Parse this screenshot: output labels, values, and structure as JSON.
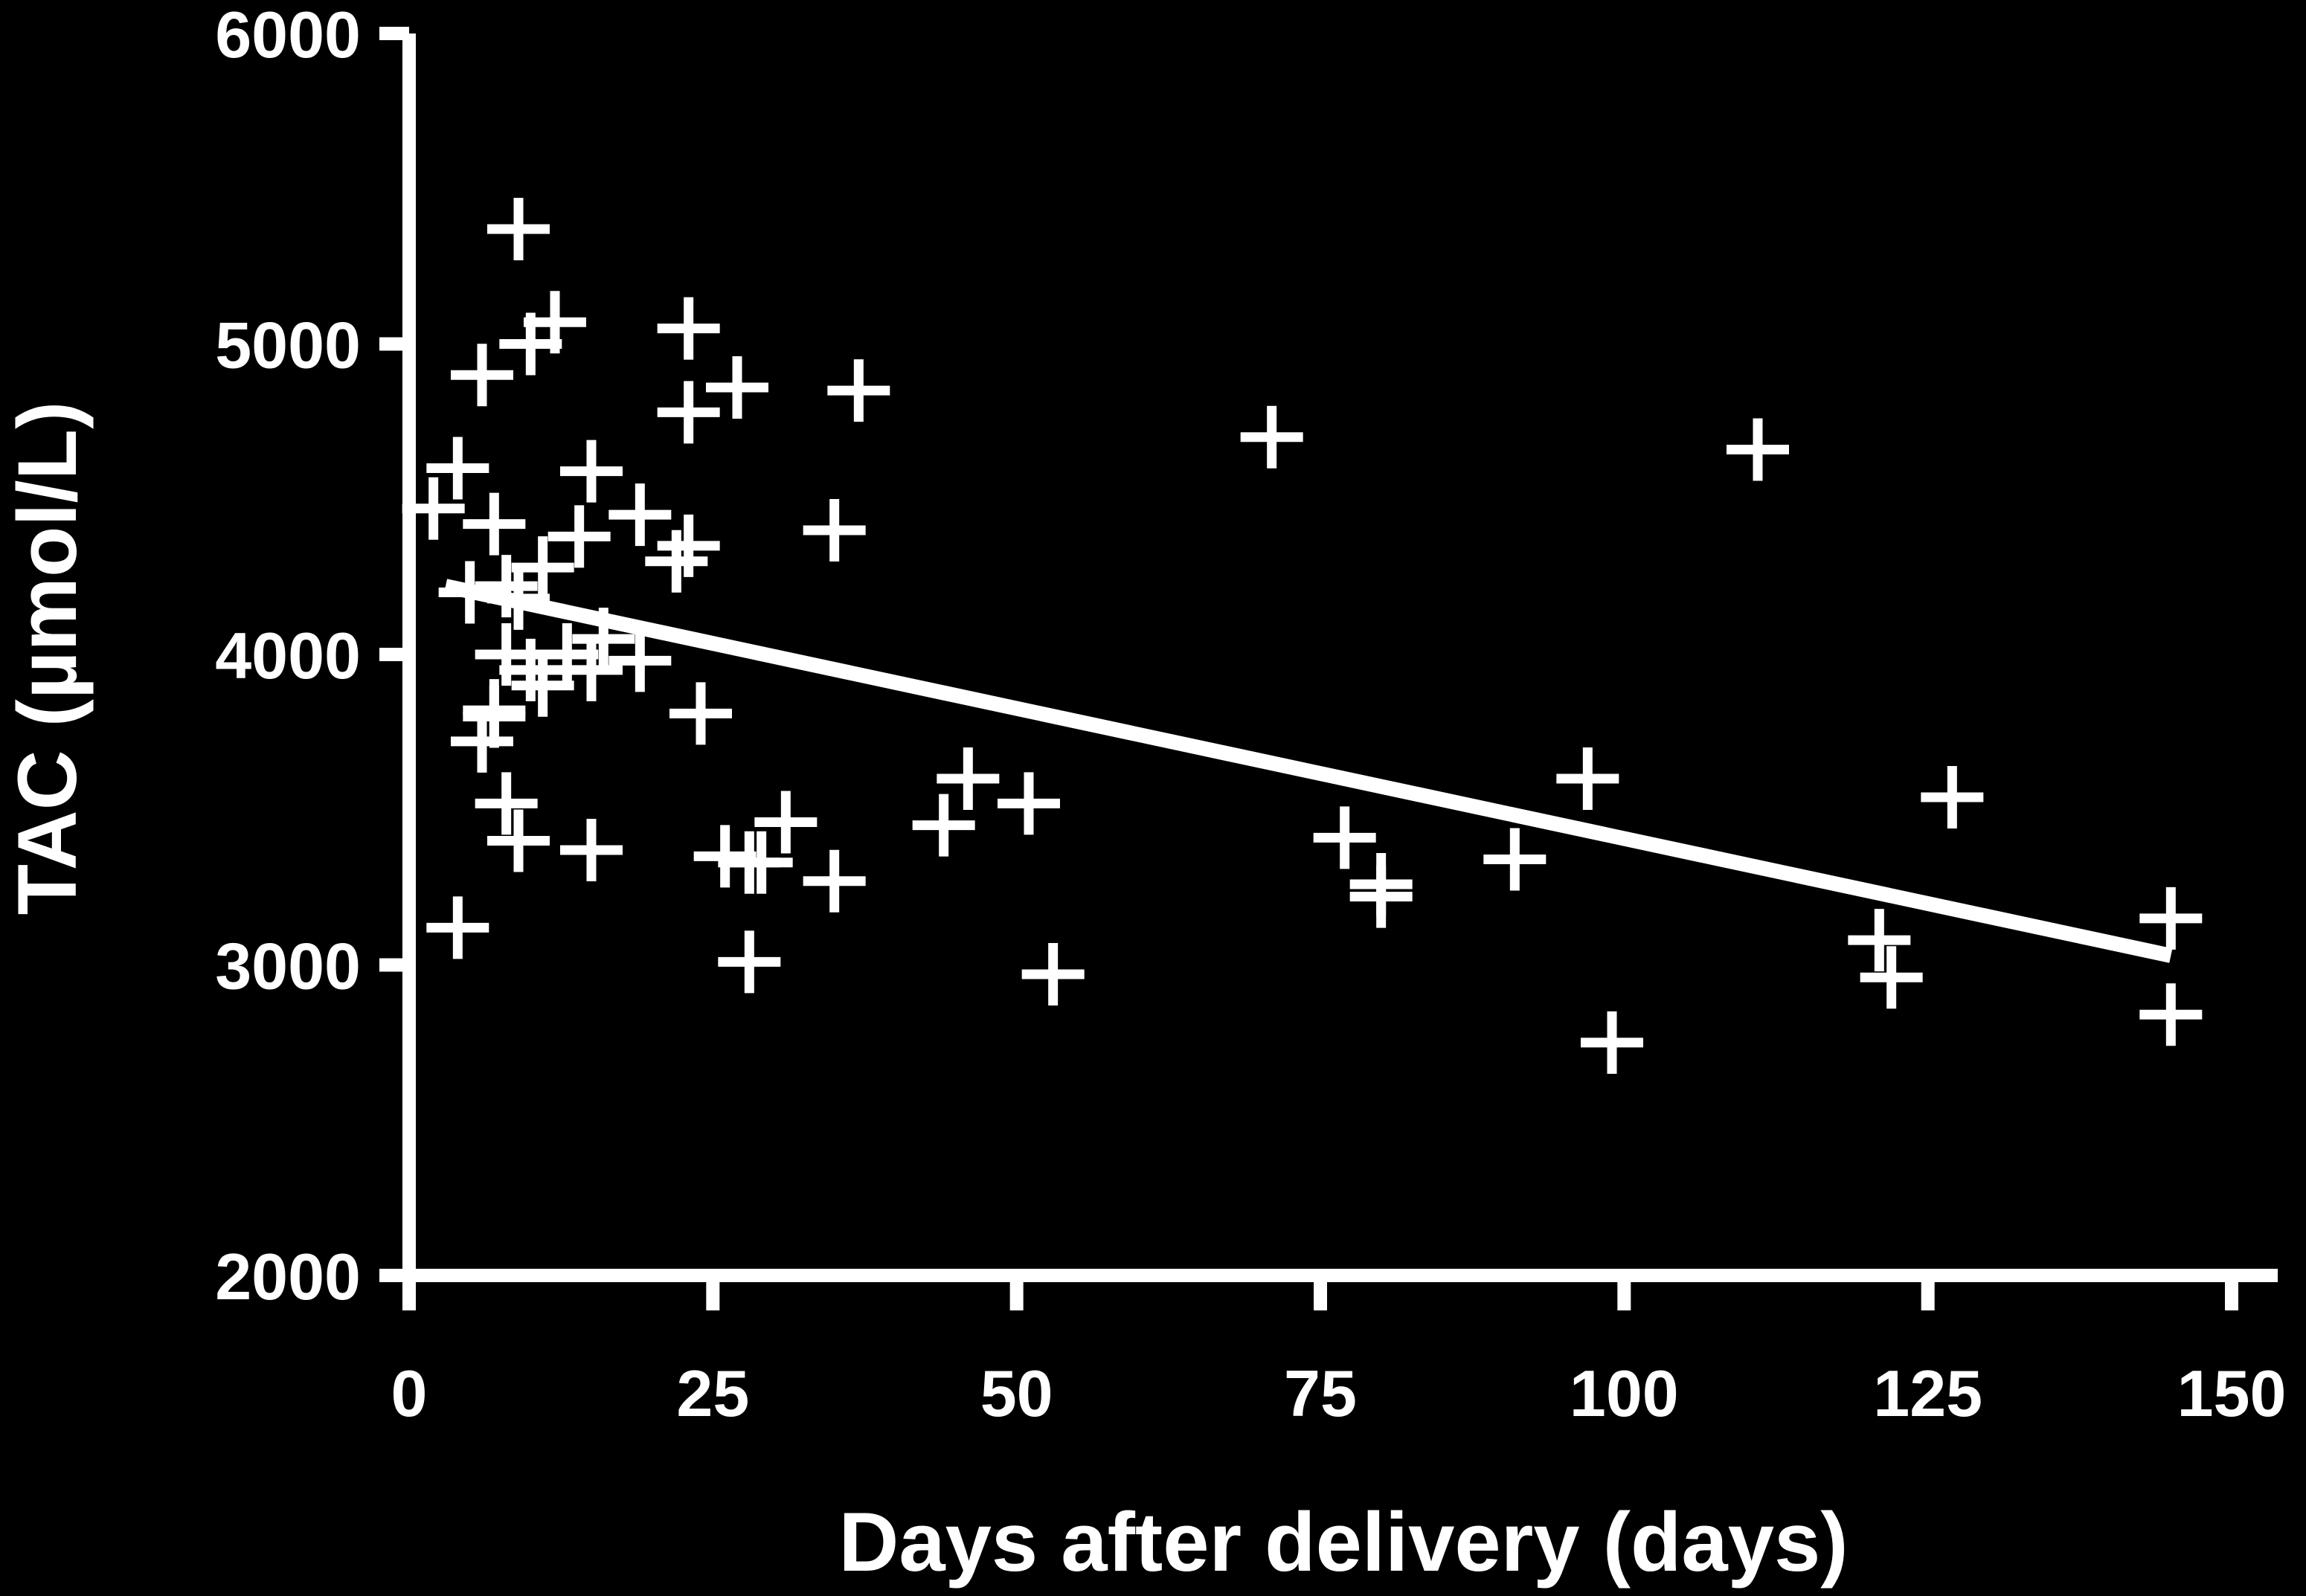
{
  "chart_data": {
    "type": "scatter",
    "xlabel": "Days after delivery (days)",
    "ylabel": "TAC (µmol/L)",
    "xlim": [
      0,
      150
    ],
    "ylim": [
      2000,
      6000
    ],
    "xticks": [
      "0",
      "25",
      "50",
      "75",
      "100",
      "125",
      "150"
    ],
    "yticks": [
      "2000",
      "3000",
      "4000",
      "5000",
      "6000"
    ],
    "grid": false,
    "legend": "none",
    "colors": {
      "background": "#000000",
      "foreground": "#ffffff"
    },
    "marker": "plus",
    "points": [
      [
        2,
        4470
      ],
      [
        4,
        4600
      ],
      [
        4,
        3120
      ],
      [
        5,
        4200
      ],
      [
        6,
        4900
      ],
      [
        6,
        3720
      ],
      [
        7,
        4420
      ],
      [
        7,
        3820
      ],
      [
        7,
        3800
      ],
      [
        8,
        4220
      ],
      [
        8,
        3520
      ],
      [
        8,
        4000
      ],
      [
        9,
        4180
      ],
      [
        9,
        3400
      ],
      [
        9,
        5370
      ],
      [
        10,
        5000
      ],
      [
        10,
        3950
      ],
      [
        11,
        3900
      ],
      [
        11,
        4280
      ],
      [
        12,
        5070
      ],
      [
        13,
        4000
      ],
      [
        14,
        4380
      ],
      [
        15,
        3950
      ],
      [
        15,
        3370
      ],
      [
        15,
        4590
      ],
      [
        16,
        4050
      ],
      [
        19,
        3980
      ],
      [
        19,
        4450
      ],
      [
        22,
        4300
      ],
      [
        23,
        4350
      ],
      [
        23,
        5050
      ],
      [
        23,
        4780
      ],
      [
        24,
        3810
      ],
      [
        26,
        3350
      ],
      [
        27,
        4860
      ],
      [
        28,
        3010
      ],
      [
        28,
        3330
      ],
      [
        29,
        3330
      ],
      [
        31,
        3460
      ],
      [
        35,
        4400
      ],
      [
        35,
        3270
      ],
      [
        37,
        4850
      ],
      [
        44,
        3450
      ],
      [
        46,
        3600
      ],
      [
        51,
        3520
      ],
      [
        53,
        2970
      ],
      [
        71,
        4700
      ],
      [
        77,
        3410
      ],
      [
        80,
        3220
      ],
      [
        80,
        3260
      ],
      [
        91,
        3340
      ],
      [
        97,
        3600
      ],
      [
        99,
        2750
      ],
      [
        111,
        4660
      ],
      [
        121,
        3080
      ],
      [
        122,
        2960
      ],
      [
        127,
        3540
      ],
      [
        145,
        3150
      ],
      [
        145,
        2840
      ]
    ],
    "trendline": {
      "x": [
        3,
        145
      ],
      "y": [
        4220,
        3030
      ]
    }
  }
}
